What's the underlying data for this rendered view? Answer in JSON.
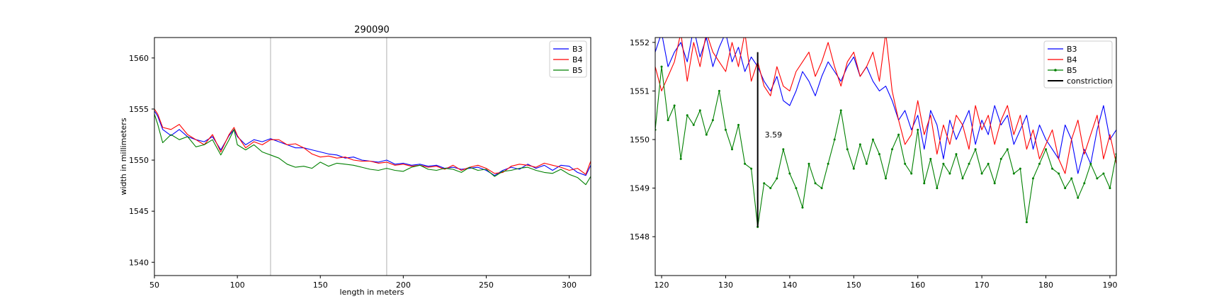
{
  "chart_data": [
    {
      "type": "line",
      "title": "290090",
      "xlabel": "length in meters",
      "ylabel": "width in millimeters",
      "xlim": [
        50,
        313
      ],
      "ylim": [
        1538.7,
        1562
      ],
      "xticks": [
        50,
        100,
        150,
        200,
        250,
        300
      ],
      "yticks": [
        1540,
        1545,
        1550,
        1555,
        1560
      ],
      "vlines": [
        120,
        190
      ],
      "grid": false,
      "legend_position": "top-right",
      "series": [
        {
          "name": "B3",
          "color": "#0000ff",
          "x": [
            50,
            52,
            55,
            60,
            65,
            70,
            75,
            80,
            85,
            90,
            95,
            98,
            100,
            105,
            110,
            115,
            120,
            125,
            130,
            135,
            140,
            145,
            150,
            155,
            160,
            165,
            170,
            175,
            180,
            185,
            190,
            195,
            200,
            205,
            210,
            215,
            220,
            225,
            230,
            235,
            240,
            245,
            250,
            255,
            260,
            265,
            270,
            275,
            280,
            285,
            290,
            295,
            300,
            305,
            310,
            313
          ],
          "y": [
            1554.8,
            1554.3,
            1553.0,
            1552.4,
            1553.0,
            1552.3,
            1552.0,
            1551.8,
            1552.3,
            1551.0,
            1552.4,
            1553.0,
            1552.3,
            1551.5,
            1552.0,
            1551.8,
            1552.1,
            1551.8,
            1551.5,
            1551.2,
            1551.2,
            1551.0,
            1550.8,
            1550.6,
            1550.5,
            1550.2,
            1550.3,
            1550.0,
            1549.9,
            1549.8,
            1550.0,
            1549.6,
            1549.7,
            1549.5,
            1549.6,
            1549.4,
            1549.5,
            1549.2,
            1549.3,
            1549.1,
            1549.2,
            1549.3,
            1549.0,
            1548.5,
            1549.0,
            1549.3,
            1549.1,
            1549.6,
            1549.2,
            1549.5,
            1549.0,
            1549.5,
            1549.4,
            1548.8,
            1548.5,
            1549.5
          ]
        },
        {
          "name": "B4",
          "color": "#ff0000",
          "x": [
            50,
            52,
            55,
            60,
            65,
            70,
            75,
            80,
            85,
            90,
            95,
            98,
            100,
            105,
            110,
            115,
            120,
            125,
            130,
            135,
            140,
            145,
            150,
            155,
            160,
            165,
            170,
            175,
            180,
            185,
            190,
            195,
            200,
            205,
            210,
            215,
            220,
            225,
            230,
            235,
            240,
            245,
            250,
            255,
            260,
            265,
            270,
            275,
            280,
            285,
            290,
            295,
            300,
            305,
            310,
            313
          ],
          "y": [
            1555.0,
            1554.5,
            1553.2,
            1553.0,
            1553.5,
            1552.5,
            1552.0,
            1551.5,
            1552.5,
            1550.8,
            1552.5,
            1553.2,
            1552.4,
            1551.2,
            1551.8,
            1551.5,
            1552.0,
            1552.0,
            1551.5,
            1551.6,
            1551.2,
            1550.6,
            1550.3,
            1550.4,
            1550.2,
            1550.3,
            1550.0,
            1549.9,
            1549.9,
            1549.7,
            1549.8,
            1549.5,
            1549.6,
            1549.4,
            1549.5,
            1549.3,
            1549.4,
            1549.1,
            1549.5,
            1549.0,
            1549.3,
            1549.5,
            1549.2,
            1548.7,
            1548.8,
            1549.4,
            1549.6,
            1549.5,
            1549.3,
            1549.7,
            1549.5,
            1549.3,
            1549.0,
            1549.2,
            1548.6,
            1549.9
          ]
        },
        {
          "name": "B5",
          "color": "#008000",
          "x": [
            50,
            52,
            55,
            60,
            65,
            70,
            75,
            80,
            85,
            90,
            95,
            98,
            100,
            105,
            110,
            115,
            120,
            125,
            130,
            135,
            140,
            145,
            150,
            155,
            160,
            165,
            170,
            175,
            180,
            185,
            190,
            195,
            200,
            205,
            210,
            215,
            220,
            225,
            230,
            235,
            240,
            245,
            250,
            255,
            260,
            265,
            270,
            275,
            280,
            285,
            290,
            295,
            300,
            305,
            310,
            313
          ],
          "y": [
            1554.5,
            1553.5,
            1551.7,
            1552.5,
            1552.0,
            1552.3,
            1551.3,
            1551.5,
            1552.0,
            1550.5,
            1552.0,
            1553.0,
            1551.5,
            1551.0,
            1551.5,
            1550.8,
            1550.5,
            1550.2,
            1549.6,
            1549.3,
            1549.4,
            1549.2,
            1549.8,
            1549.4,
            1549.7,
            1549.6,
            1549.5,
            1549.3,
            1549.1,
            1549.0,
            1549.2,
            1549.0,
            1548.9,
            1549.3,
            1549.5,
            1549.1,
            1549.0,
            1549.2,
            1549.1,
            1548.8,
            1549.3,
            1549.0,
            1549.1,
            1548.4,
            1548.9,
            1549.0,
            1549.2,
            1549.3,
            1549.0,
            1548.8,
            1548.7,
            1549.1,
            1548.6,
            1548.3,
            1547.6,
            1548.4
          ]
        }
      ]
    },
    {
      "type": "line",
      "title": "",
      "xlabel": "",
      "ylabel": "",
      "xlim": [
        119,
        191
      ],
      "ylim": [
        1547.2,
        1552.1
      ],
      "xticks": [
        120,
        130,
        140,
        150,
        160,
        170,
        180,
        190
      ],
      "yticks": [
        1548,
        1549,
        1550,
        1551,
        1552
      ],
      "grid": false,
      "legend_position": "top-right",
      "constriction": {
        "name": "constriction",
        "x": 135,
        "y_top": 1551.8,
        "y_bottom": 1548.2,
        "label": "3.59",
        "color": "#000000"
      },
      "series": [
        {
          "name": "B3",
          "color": "#0000ff",
          "markers": false,
          "x": [
            119,
            120,
            121,
            122,
            123,
            124,
            125,
            126,
            127,
            128,
            129,
            130,
            131,
            132,
            133,
            134,
            135,
            136,
            137,
            138,
            139,
            140,
            141,
            142,
            143,
            144,
            145,
            146,
            147,
            148,
            149,
            150,
            151,
            152,
            153,
            154,
            155,
            156,
            157,
            158,
            159,
            160,
            161,
            162,
            163,
            164,
            165,
            166,
            167,
            168,
            169,
            170,
            171,
            172,
            173,
            174,
            175,
            176,
            177,
            178,
            179,
            180,
            181,
            182,
            183,
            184,
            185,
            186,
            187,
            188,
            189,
            190,
            191
          ],
          "y": [
            1551.8,
            1552.2,
            1551.5,
            1551.8,
            1552.0,
            1551.6,
            1552.3,
            1551.7,
            1552.1,
            1551.5,
            1551.9,
            1552.2,
            1551.6,
            1551.9,
            1551.4,
            1551.7,
            1551.5,
            1551.2,
            1551.0,
            1551.3,
            1550.8,
            1550.7,
            1551.0,
            1551.4,
            1551.2,
            1550.9,
            1551.3,
            1551.6,
            1551.4,
            1551.2,
            1551.5,
            1551.7,
            1551.3,
            1551.5,
            1551.2,
            1551.0,
            1551.1,
            1550.8,
            1550.4,
            1550.6,
            1550.2,
            1550.5,
            1549.8,
            1550.6,
            1550.3,
            1549.6,
            1550.4,
            1550.0,
            1550.3,
            1550.6,
            1549.9,
            1550.4,
            1550.1,
            1550.7,
            1550.3,
            1550.5,
            1549.9,
            1550.2,
            1550.5,
            1549.8,
            1550.3,
            1550.0,
            1549.8,
            1549.6,
            1550.3,
            1550.0,
            1549.3,
            1549.8,
            1549.5,
            1550.2,
            1550.7,
            1550.0,
            1550.2
          ]
        },
        {
          "name": "B4",
          "color": "#ff0000",
          "markers": false,
          "x": [
            119,
            120,
            121,
            122,
            123,
            124,
            125,
            126,
            127,
            128,
            129,
            130,
            131,
            132,
            133,
            134,
            135,
            136,
            137,
            138,
            139,
            140,
            141,
            142,
            143,
            144,
            145,
            146,
            147,
            148,
            149,
            150,
            151,
            152,
            153,
            154,
            155,
            156,
            157,
            158,
            159,
            160,
            161,
            162,
            163,
            164,
            165,
            166,
            167,
            168,
            169,
            170,
            171,
            172,
            173,
            174,
            175,
            176,
            177,
            178,
            179,
            180,
            181,
            182,
            183,
            184,
            185,
            186,
            187,
            188,
            189,
            190,
            191
          ],
          "y": [
            1551.5,
            1551.0,
            1551.3,
            1551.6,
            1552.2,
            1551.2,
            1552.0,
            1551.5,
            1552.2,
            1551.8,
            1551.6,
            1551.4,
            1552.0,
            1551.5,
            1552.2,
            1551.2,
            1551.6,
            1551.1,
            1550.9,
            1551.5,
            1551.1,
            1551.0,
            1551.4,
            1551.6,
            1551.8,
            1551.3,
            1551.6,
            1552.0,
            1551.5,
            1551.1,
            1551.6,
            1551.8,
            1551.3,
            1551.5,
            1551.8,
            1551.2,
            1552.2,
            1551.0,
            1550.4,
            1549.9,
            1550.1,
            1550.8,
            1550.1,
            1550.5,
            1549.7,
            1550.3,
            1549.9,
            1550.5,
            1550.3,
            1549.8,
            1550.7,
            1550.2,
            1550.5,
            1549.9,
            1550.4,
            1550.7,
            1550.1,
            1550.5,
            1549.8,
            1550.2,
            1549.6,
            1549.9,
            1550.2,
            1549.6,
            1549.3,
            1550.0,
            1550.4,
            1549.7,
            1550.1,
            1550.5,
            1549.6,
            1550.1,
            1549.5
          ]
        },
        {
          "name": "B5",
          "color": "#008000",
          "markers": true,
          "x": [
            119,
            120,
            121,
            122,
            123,
            124,
            125,
            126,
            127,
            128,
            129,
            130,
            131,
            132,
            133,
            134,
            135,
            136,
            137,
            138,
            139,
            140,
            141,
            142,
            143,
            144,
            145,
            146,
            147,
            148,
            149,
            150,
            151,
            152,
            153,
            154,
            155,
            156,
            157,
            158,
            159,
            160,
            161,
            162,
            163,
            164,
            165,
            166,
            167,
            168,
            169,
            170,
            171,
            172,
            173,
            174,
            175,
            176,
            177,
            178,
            179,
            180,
            181,
            182,
            183,
            184,
            185,
            186,
            187,
            188,
            189,
            190,
            191
          ],
          "y": [
            1550.2,
            1551.5,
            1550.4,
            1550.7,
            1549.6,
            1550.5,
            1550.3,
            1550.6,
            1550.1,
            1550.4,
            1551.0,
            1550.2,
            1549.8,
            1550.3,
            1549.5,
            1549.4,
            1548.2,
            1549.1,
            1549.0,
            1549.2,
            1549.8,
            1549.3,
            1549.0,
            1548.6,
            1549.5,
            1549.1,
            1549.0,
            1549.5,
            1550.0,
            1550.6,
            1549.8,
            1549.4,
            1549.9,
            1549.5,
            1550.0,
            1549.7,
            1549.2,
            1549.8,
            1550.1,
            1549.5,
            1549.3,
            1550.2,
            1549.1,
            1549.6,
            1549.0,
            1549.5,
            1549.3,
            1549.7,
            1549.2,
            1549.5,
            1549.8,
            1549.3,
            1549.5,
            1549.1,
            1549.6,
            1549.8,
            1549.3,
            1549.4,
            1548.3,
            1549.2,
            1549.5,
            1549.8,
            1549.4,
            1549.3,
            1549.0,
            1549.2,
            1548.8,
            1549.1,
            1549.5,
            1549.2,
            1549.3,
            1549.0,
            1549.7
          ]
        },
        {
          "name": "constriction",
          "color": "#000000",
          "legend_only": true
        }
      ]
    }
  ]
}
